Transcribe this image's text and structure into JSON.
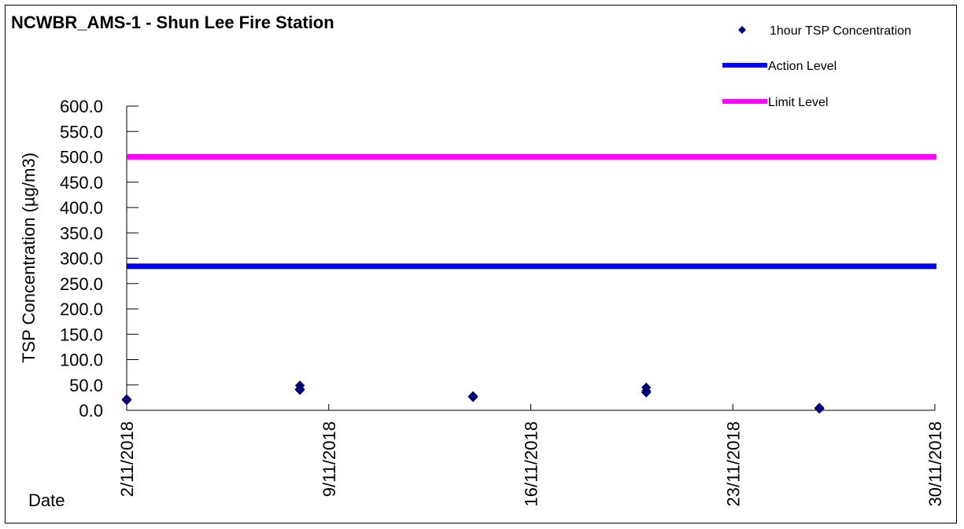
{
  "chart_data": {
    "type": "scatter",
    "title": "NCWBR_AMS-1 - Shun Lee Fire Station",
    "ylabel": "TSP Concentration (µg/m3)",
    "xlabel": "Date",
    "ylim": [
      0,
      600
    ],
    "y_ticks": [
      "0.0",
      "50.0",
      "100.0",
      "150.0",
      "200.0",
      "250.0",
      "300.0",
      "350.0",
      "400.0",
      "450.0",
      "500.0",
      "550.0",
      "600.0"
    ],
    "xlim": [
      "2/11/2018",
      "30/11/2018"
    ],
    "x_ticks": [
      "2/11/2018",
      "9/11/2018",
      "16/11/2018",
      "23/11/2018",
      "30/11/2018"
    ],
    "series": [
      {
        "name": "1hour TSP Concentration",
        "kind": "points",
        "marker": "diamond",
        "color": "#000080",
        "points": [
          {
            "x": "2/11/2018",
            "y": 22
          },
          {
            "x": "2/11/2018",
            "y": 20
          },
          {
            "x": "2/11/2018",
            "y": 21
          },
          {
            "x": "8/11/2018",
            "y": 49
          },
          {
            "x": "8/11/2018",
            "y": 42
          },
          {
            "x": "8/11/2018",
            "y": 40
          },
          {
            "x": "14/11/2018",
            "y": 28
          },
          {
            "x": "14/11/2018",
            "y": 26
          },
          {
            "x": "14/11/2018",
            "y": 27
          },
          {
            "x": "20/11/2018",
            "y": 45
          },
          {
            "x": "20/11/2018",
            "y": 38
          },
          {
            "x": "20/11/2018",
            "y": 35
          },
          {
            "x": "26/11/2018",
            "y": 4
          },
          {
            "x": "26/11/2018",
            "y": 3
          },
          {
            "x": "26/11/2018",
            "y": 5
          }
        ]
      },
      {
        "name": "Action Level",
        "kind": "hline",
        "color": "#0000ff",
        "value": 284.1
      },
      {
        "name": "Limit Level",
        "kind": "hline",
        "color": "#ff00ff",
        "value": 500
      }
    ],
    "grid": false,
    "legend_position": "top-right"
  }
}
